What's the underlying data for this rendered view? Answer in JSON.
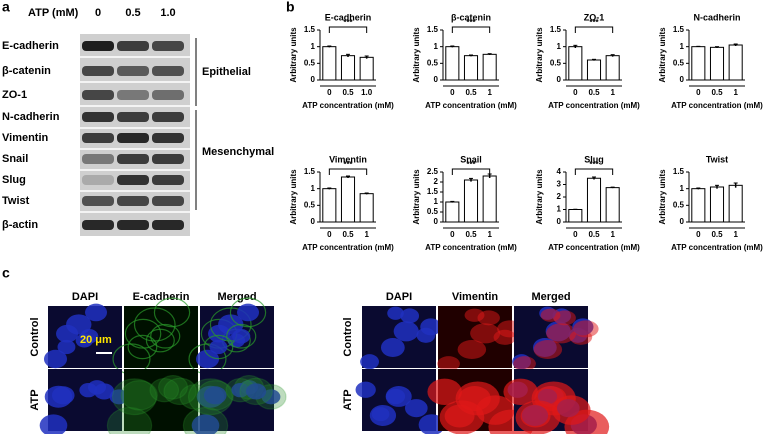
{
  "panel_labels": [
    "a",
    "b",
    "c"
  ],
  "blot": {
    "header": "ATP (mM)",
    "lanes": [
      "0",
      "0.5",
      "1.0"
    ],
    "proteins": [
      "E-cadherin",
      "β-catenin",
      "ZO-1",
      "N-cadherin",
      "Vimentin",
      "Snail",
      "Slug",
      "Twist",
      "β-actin"
    ],
    "groups": [
      "Epithelial",
      "Mesenchymal"
    ]
  },
  "chart_data": [
    {
      "type": "bar",
      "title": "E-cadherin",
      "categories": [
        "0",
        "0.5",
        "1.0"
      ],
      "values": [
        1,
        0.73,
        0.68
      ],
      "errors": [
        0.02,
        0.04,
        0.04
      ],
      "ylim": [
        0,
        1.5
      ],
      "yticks": [
        0,
        0.5,
        1,
        1.5
      ],
      "annotation": "***",
      "xlabel": "ATP concentration (mM)",
      "ylabel": "Arbitrary units"
    },
    {
      "type": "bar",
      "title": "β-catenin",
      "categories": [
        "0",
        "0.5",
        "1"
      ],
      "values": [
        1,
        0.73,
        0.77
      ],
      "errors": [
        0.02,
        0.02,
        0.02
      ],
      "ylim": [
        0,
        1.5
      ],
      "yticks": [
        0,
        0.5,
        1,
        1.5
      ],
      "annotation": "***",
      "xlabel": "ATP concentration (mM)",
      "ylabel": "Arbitrary units"
    },
    {
      "type": "bar",
      "title": "ZO-1",
      "categories": [
        "0",
        "0.5",
        "1"
      ],
      "values": [
        1,
        0.6,
        0.73
      ],
      "errors": [
        0.04,
        0.02,
        0.03
      ],
      "ylim": [
        0,
        1.5
      ],
      "yticks": [
        0,
        0.5,
        1,
        1.5
      ],
      "annotation": "***",
      "xlabel": "ATP concentration (mM)",
      "ylabel": "Arbitrary units"
    },
    {
      "type": "bar",
      "title": "N-cadherin",
      "categories": [
        "0",
        "0.5",
        "1"
      ],
      "values": [
        1,
        0.98,
        1.05
      ],
      "errors": [
        0.01,
        0.02,
        0.03
      ],
      "ylim": [
        0,
        1.5
      ],
      "yticks": [
        0,
        0.5,
        1,
        1.5
      ],
      "xlabel": "ATP concentration (mM)",
      "ylabel": "Arbitrary units"
    },
    {
      "type": "bar",
      "title": "Vimentin",
      "categories": [
        "0",
        "0.5",
        "1"
      ],
      "values": [
        1,
        1.35,
        0.85
      ],
      "errors": [
        0.02,
        0.03,
        0.02
      ],
      "ylim": [
        0,
        1.5
      ],
      "yticks": [
        0,
        0.5,
        1,
        1.5
      ],
      "annotation": "***",
      "xlabel": "ATP concentration (mM)",
      "ylabel": "Arbitrary units"
    },
    {
      "type": "bar",
      "title": "Snail",
      "categories": [
        "0",
        "0.5",
        "1"
      ],
      "values": [
        1,
        2.1,
        2.3
      ],
      "errors": [
        0.03,
        0.08,
        0.1
      ],
      "ylim": [
        0,
        2.5
      ],
      "yticks": [
        0,
        0.5,
        1,
        1.5,
        2,
        2.5
      ],
      "annotation": "***",
      "xlabel": "ATP concentration (mM)",
      "ylabel": "Arbitrary units"
    },
    {
      "type": "bar",
      "title": "Slug",
      "categories": [
        "0",
        "0.5",
        "1"
      ],
      "values": [
        1,
        3.5,
        2.75
      ],
      "errors": [
        0.02,
        0.1,
        0.04
      ],
      "ylim": [
        0,
        4
      ],
      "yticks": [
        0,
        1,
        2,
        3,
        4
      ],
      "annotation": "***",
      "xlabel": "ATP concentration (mM)",
      "ylabel": "Arbitrary units"
    },
    {
      "type": "bar",
      "title": "Twist",
      "categories": [
        "0",
        "0.5",
        "1"
      ],
      "values": [
        1,
        1.05,
        1.1
      ],
      "errors": [
        0.02,
        0.05,
        0.07
      ],
      "ylim": [
        0,
        1.5
      ],
      "yticks": [
        0,
        0.5,
        1,
        1.5
      ],
      "xlabel": "ATP concentration (mM)",
      "ylabel": "Arbitrary units"
    }
  ],
  "panel_c": {
    "left_columns": [
      "DAPI",
      "E-cadherin",
      "Merged"
    ],
    "right_columns": [
      "DAPI",
      "Vimentin",
      "Merged"
    ],
    "rows": [
      "Control",
      "ATP"
    ],
    "scale_bar": "20 μm"
  }
}
